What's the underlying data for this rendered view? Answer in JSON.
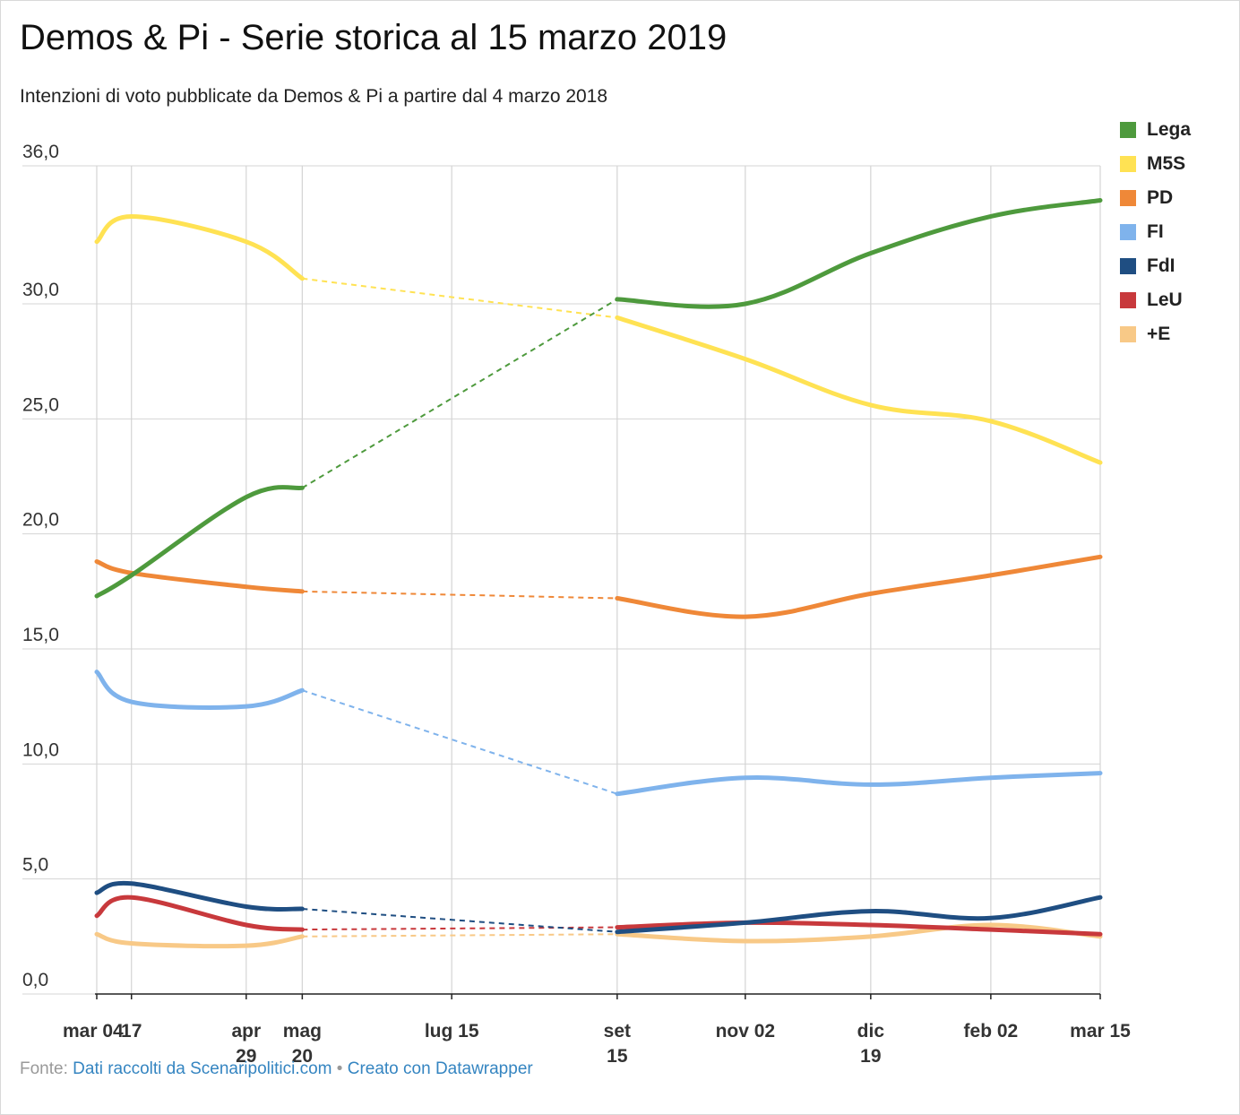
{
  "title": "Demos & Pi - Serie storica al 15 marzo 2019",
  "subtitle": "Intenzioni di voto pubblicate da Demos & Pi a partire dal 4 marzo 2018",
  "footer": {
    "source_prefix": "Fonte:",
    "source_link": "Dati raccolti da Scenaripolitici.com",
    "separator": "•",
    "credit_link": "Creato con Datawrapper"
  },
  "chart_data": {
    "type": "line",
    "y_ticks": [
      "0,0",
      "5,0",
      "10,0",
      "15,0",
      "20,0",
      "25,0",
      "30,0",
      "36,0"
    ],
    "y_tick_values": [
      0,
      5,
      10,
      15,
      20,
      25,
      30,
      36
    ],
    "ylim": [
      0,
      36
    ],
    "x_ticks": [
      {
        "date": "2018-03-04",
        "lines": [
          "mar 04"
        ]
      },
      {
        "date": "2018-03-17",
        "lines": [
          "17"
        ]
      },
      {
        "date": "2018-04-29",
        "lines": [
          "apr",
          "29"
        ]
      },
      {
        "date": "2018-05-20",
        "lines": [
          "mag",
          "20"
        ]
      },
      {
        "date": "2018-07-15",
        "lines": [
          "lug 15"
        ]
      },
      {
        "date": "2018-09-15",
        "lines": [
          "set",
          "15"
        ]
      },
      {
        "date": "2018-11-02",
        "lines": [
          "nov 02"
        ]
      },
      {
        "date": "2018-12-19",
        "lines": [
          "dic",
          "19"
        ]
      },
      {
        "date": "2019-02-02",
        "lines": [
          "feb 02"
        ]
      },
      {
        "date": "2019-03-15",
        "lines": [
          "mar 15"
        ]
      }
    ],
    "x_grid_dates": [
      "2018-03-04",
      "2018-03-17",
      "2018-04-29",
      "2018-05-20",
      "2018-07-15",
      "2018-09-15",
      "2018-11-02",
      "2018-12-19",
      "2019-02-02",
      "2019-03-15"
    ],
    "grid": true,
    "legend_position": "right",
    "series": [
      {
        "name": "Lega",
        "color": "#4e9a3d",
        "points": [
          [
            "2018-03-04",
            17.3
          ],
          [
            "2018-03-17",
            18.2
          ],
          [
            "2018-04-29",
            21.6
          ],
          [
            "2018-05-20",
            22.0
          ],
          [
            "2018-09-15",
            30.2
          ],
          [
            "2018-11-02",
            30.0
          ],
          [
            "2018-12-19",
            32.2
          ],
          [
            "2019-02-02",
            33.8
          ],
          [
            "2019-03-15",
            34.5
          ]
        ]
      },
      {
        "name": "M5S",
        "color": "#ffe253",
        "points": [
          [
            "2018-03-04",
            32.7
          ],
          [
            "2018-03-17",
            33.8
          ],
          [
            "2018-04-29",
            32.7
          ],
          [
            "2018-05-20",
            31.1
          ],
          [
            "2018-09-15",
            29.4
          ],
          [
            "2018-11-02",
            27.6
          ],
          [
            "2018-12-19",
            25.6
          ],
          [
            "2019-02-02",
            24.9
          ],
          [
            "2019-03-15",
            23.1
          ]
        ]
      },
      {
        "name": "PD",
        "color": "#ef8838",
        "points": [
          [
            "2018-03-04",
            18.8
          ],
          [
            "2018-03-17",
            18.3
          ],
          [
            "2018-04-29",
            17.7
          ],
          [
            "2018-05-20",
            17.5
          ],
          [
            "2018-09-15",
            17.2
          ],
          [
            "2018-11-02",
            16.4
          ],
          [
            "2018-12-19",
            17.4
          ],
          [
            "2019-02-02",
            18.2
          ],
          [
            "2019-03-15",
            19.0
          ]
        ]
      },
      {
        "name": "FI",
        "color": "#7fb3ec",
        "points": [
          [
            "2018-03-04",
            14.0
          ],
          [
            "2018-03-17",
            12.7
          ],
          [
            "2018-04-29",
            12.5
          ],
          [
            "2018-05-20",
            13.2
          ],
          [
            "2018-09-15",
            8.7
          ],
          [
            "2018-11-02",
            9.4
          ],
          [
            "2018-12-19",
            9.1
          ],
          [
            "2019-02-02",
            9.4
          ],
          [
            "2019-03-15",
            9.6
          ]
        ]
      },
      {
        "name": "FdI",
        "color": "#1f4e82",
        "points": [
          [
            "2018-03-04",
            4.4
          ],
          [
            "2018-03-17",
            4.8
          ],
          [
            "2018-04-29",
            3.8
          ],
          [
            "2018-05-20",
            3.7
          ],
          [
            "2018-09-15",
            2.7
          ],
          [
            "2018-11-02",
            3.1
          ],
          [
            "2018-12-19",
            3.6
          ],
          [
            "2019-02-02",
            3.3
          ],
          [
            "2019-03-15",
            4.2
          ]
        ]
      },
      {
        "name": "LeU",
        "color": "#c8393c",
        "points": [
          [
            "2018-03-04",
            3.4
          ],
          [
            "2018-03-17",
            4.2
          ],
          [
            "2018-04-29",
            3.0
          ],
          [
            "2018-05-20",
            2.8
          ],
          [
            "2018-09-15",
            2.9
          ],
          [
            "2018-11-02",
            3.1
          ],
          [
            "2018-12-19",
            3.0
          ],
          [
            "2019-02-02",
            2.8
          ],
          [
            "2019-03-15",
            2.6
          ]
        ]
      },
      {
        "name": "+E",
        "color": "#f8c987",
        "points": [
          [
            "2018-03-04",
            2.6
          ],
          [
            "2018-03-17",
            2.2
          ],
          [
            "2018-04-29",
            2.1
          ],
          [
            "2018-05-20",
            2.5
          ],
          [
            "2018-09-15",
            2.6
          ],
          [
            "2018-11-02",
            2.3
          ],
          [
            "2018-12-19",
            2.5
          ],
          [
            "2019-02-02",
            3.0
          ],
          [
            "2019-03-15",
            2.5
          ]
        ]
      }
    ],
    "gap_start_date": "2018-05-20",
    "gap_end_date": "2018-09-15"
  }
}
